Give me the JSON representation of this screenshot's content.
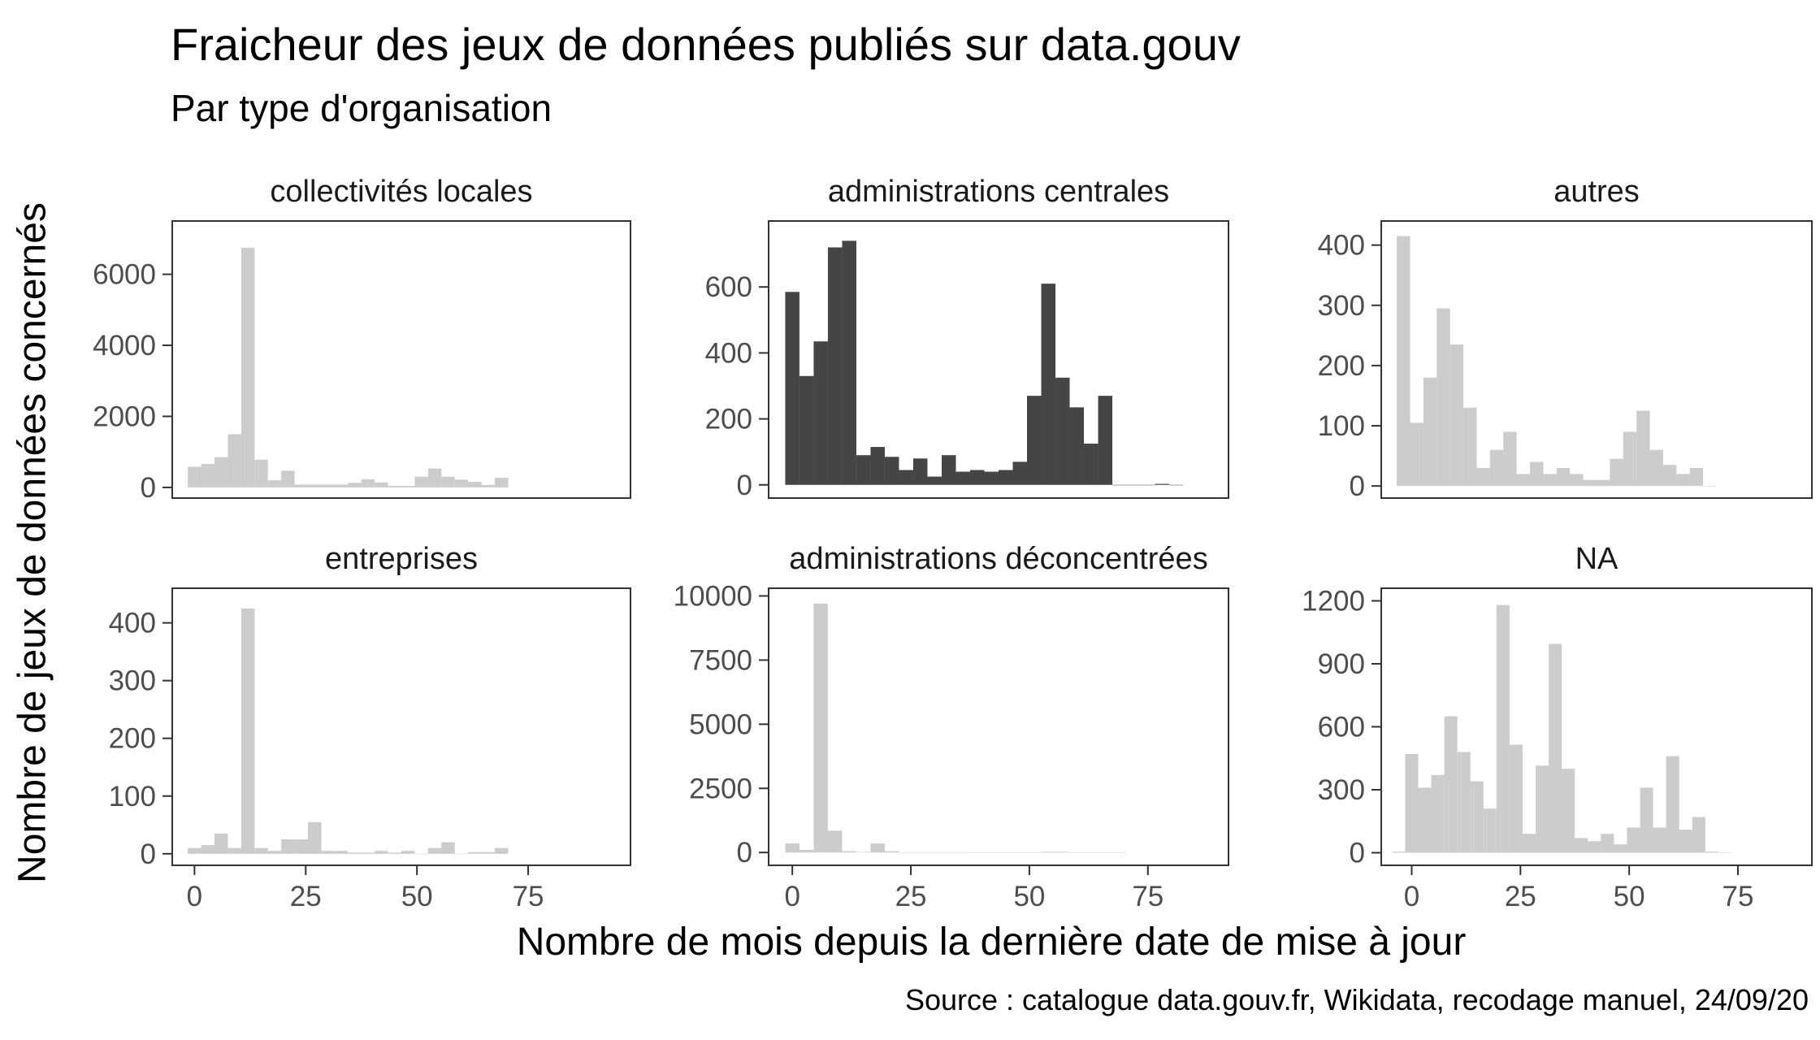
{
  "title": "Fraicheur des jeux de données publiés sur data.gouv",
  "subtitle": "Par type d'organisation",
  "xlabel": "Nombre de mois depuis la dernière date de mise à jour",
  "ylabel": "Nombre de jeux de données concernés",
  "caption": "Source : catalogue data.gouv.fr, Wikidata, recodage manuel, 24/09/20",
  "colors": {
    "highlight": "#454545",
    "muted": "#cccccc",
    "panel_border": "#333333",
    "tick_text": "#4d4d4d"
  },
  "chart_data": [
    {
      "type": "bar",
      "name": "collectivités locales",
      "highlight": false,
      "bin_width": 3,
      "x": [
        0,
        3,
        6,
        9,
        12,
        15,
        18,
        21,
        24,
        27,
        30,
        33,
        36,
        39,
        42,
        45,
        48,
        51,
        54,
        57,
        60,
        63,
        66,
        69
      ],
      "values": [
        580,
        660,
        850,
        1500,
        6750,
        780,
        200,
        470,
        80,
        80,
        80,
        80,
        130,
        230,
        140,
        40,
        40,
        300,
        530,
        300,
        220,
        160,
        70,
        270
      ],
      "xlim": [
        -5,
        98
      ],
      "ylim": [
        -300,
        7500
      ],
      "yticks": [
        0,
        2000,
        4000,
        6000
      ],
      "xticks": [
        0,
        25,
        50,
        75
      ]
    },
    {
      "type": "bar",
      "name": "administrations centrales",
      "highlight": true,
      "bin_width": 3,
      "x": [
        0,
        3,
        6,
        9,
        12,
        15,
        18,
        21,
        24,
        27,
        30,
        33,
        36,
        39,
        42,
        45,
        48,
        51,
        54,
        57,
        60,
        63,
        66,
        69,
        72,
        75,
        78,
        81
      ],
      "values": [
        585,
        330,
        435,
        720,
        740,
        90,
        115,
        85,
        45,
        80,
        25,
        90,
        40,
        45,
        40,
        45,
        70,
        270,
        610,
        325,
        235,
        125,
        270,
        0,
        0,
        0,
        3,
        0
      ],
      "xlim": [
        -5,
        92
      ],
      "ylim": [
        -40,
        800
      ],
      "yticks": [
        0,
        200,
        400,
        600
      ],
      "xticks": [
        0,
        25,
        50,
        75
      ]
    },
    {
      "type": "bar",
      "name": "autres",
      "highlight": false,
      "bin_width": 3,
      "x": [
        0,
        3,
        6,
        9,
        12,
        15,
        18,
        21,
        24,
        27,
        30,
        33,
        36,
        39,
        42,
        45,
        48,
        51,
        54,
        57,
        60,
        63,
        66,
        69
      ],
      "values": [
        415,
        105,
        180,
        295,
        235,
        130,
        30,
        60,
        90,
        20,
        40,
        20,
        30,
        20,
        10,
        10,
        45,
        90,
        125,
        60,
        35,
        20,
        30,
        0
      ],
      "xlim": [
        -5,
        92
      ],
      "ylim": [
        -20,
        440
      ],
      "yticks": [
        0,
        100,
        200,
        300,
        400
      ],
      "xticks": [
        0,
        25,
        50,
        75
      ]
    },
    {
      "type": "bar",
      "name": "entreprises",
      "highlight": false,
      "bin_width": 3,
      "x": [
        0,
        3,
        6,
        9,
        12,
        15,
        18,
        21,
        24,
        27,
        30,
        33,
        36,
        39,
        42,
        45,
        48,
        51,
        54,
        57,
        60,
        63,
        66,
        69
      ],
      "values": [
        10,
        15,
        35,
        10,
        425,
        10,
        5,
        25,
        25,
        55,
        5,
        5,
        2,
        2,
        5,
        2,
        5,
        0,
        10,
        20,
        0,
        3,
        3,
        10
      ],
      "xlim": [
        -5,
        98
      ],
      "ylim": [
        -20,
        460
      ],
      "yticks": [
        0,
        100,
        200,
        300,
        400
      ],
      "xticks": [
        0,
        25,
        50,
        75
      ]
    },
    {
      "type": "bar",
      "name": "administrations déconcentrées",
      "highlight": false,
      "bin_width": 3,
      "x": [
        0,
        3,
        6,
        9,
        12,
        15,
        18,
        21,
        24,
        27,
        30,
        33,
        36,
        39,
        42,
        45,
        48,
        51,
        54,
        57,
        60,
        63,
        66,
        69
      ],
      "values": [
        350,
        100,
        9700,
        850,
        50,
        20,
        350,
        50,
        10,
        10,
        10,
        10,
        10,
        5,
        5,
        5,
        5,
        5,
        30,
        30,
        5,
        5,
        5,
        5
      ],
      "xlim": [
        -5,
        92
      ],
      "ylim": [
        -500,
        10300
      ],
      "yticks": [
        0,
        2500,
        5000,
        7500,
        10000
      ],
      "xticks": [
        0,
        25,
        50,
        75
      ]
    },
    {
      "type": "bar",
      "name": "NA",
      "highlight": false,
      "bin_width": 3,
      "x": [
        -3,
        0,
        3,
        6,
        9,
        12,
        15,
        18,
        21,
        24,
        27,
        30,
        33,
        36,
        39,
        42,
        45,
        48,
        51,
        54,
        57,
        60,
        63,
        66,
        69,
        72
      ],
      "values": [
        5,
        470,
        310,
        370,
        650,
        480,
        340,
        210,
        1180,
        515,
        90,
        415,
        995,
        400,
        70,
        55,
        90,
        40,
        120,
        310,
        120,
        460,
        110,
        170,
        5,
        0
      ],
      "xlim": [
        -7,
        92
      ],
      "ylim": [
        -60,
        1260
      ],
      "yticks": [
        0,
        300,
        600,
        900,
        1200
      ],
      "xticks": [
        0,
        25,
        50,
        75
      ]
    }
  ]
}
